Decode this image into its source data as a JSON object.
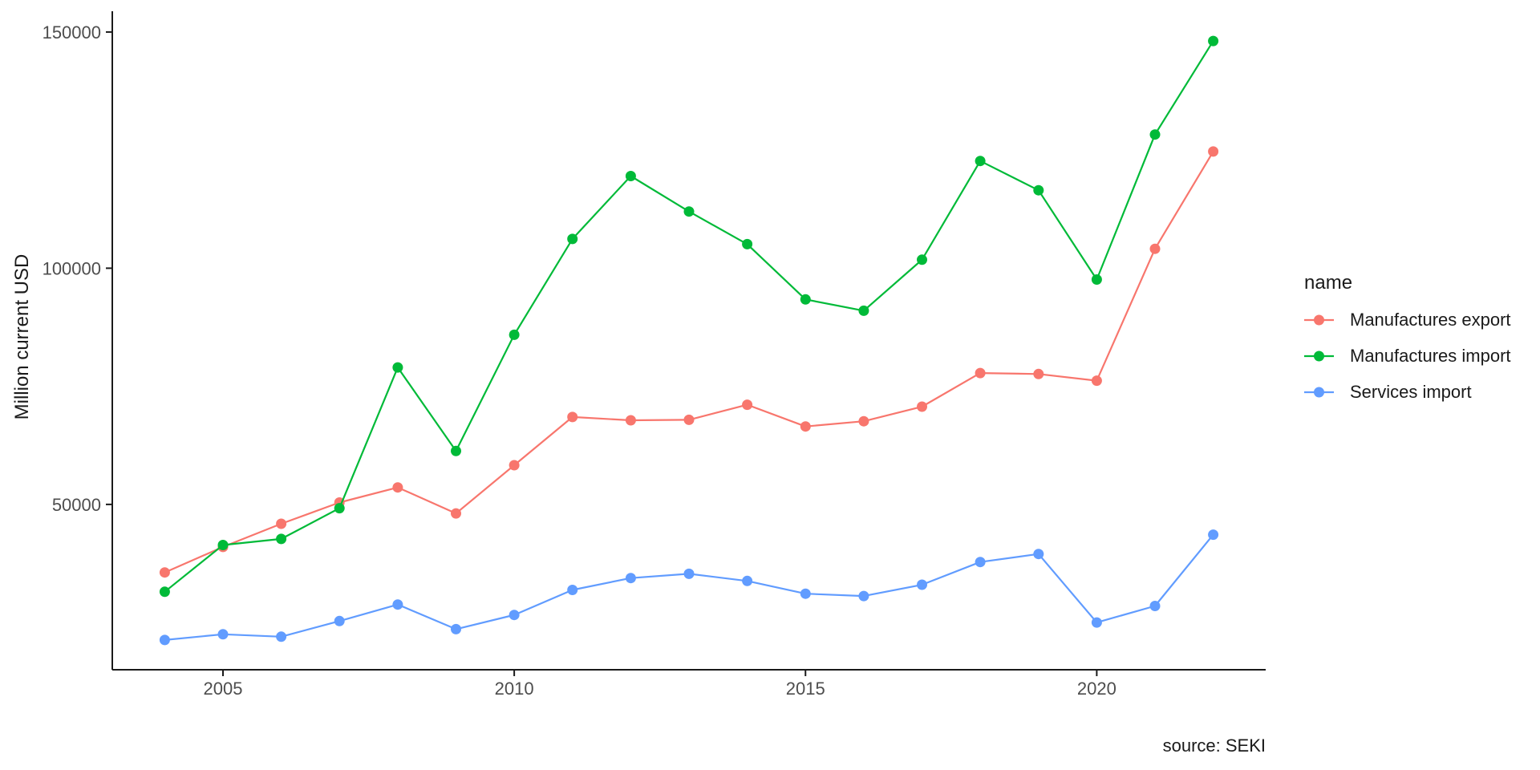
{
  "figure": {
    "y_axis_title": "Million current USD",
    "caption": "source: SEKI",
    "legend": {
      "title": "name",
      "items": [
        {
          "label": "Manufactures export",
          "color": "#F8766D"
        },
        {
          "label": "Manufactures import",
          "color": "#00BA38"
        },
        {
          "label": "Services import",
          "color": "#619CFF"
        }
      ]
    }
  },
  "chart_data": {
    "type": "line",
    "x": [
      2004,
      2005,
      2006,
      2007,
      2008,
      2009,
      2010,
      2011,
      2012,
      2013,
      2014,
      2015,
      2016,
      2017,
      2018,
      2019,
      2020,
      2021,
      2022
    ],
    "series": [
      {
        "name": "Manufactures export",
        "color": "#F8766D",
        "values": [
          35600,
          41000,
          45900,
          50400,
          53600,
          48100,
          58300,
          68500,
          67800,
          67900,
          71100,
          66500,
          67600,
          70700,
          77800,
          77600,
          76200,
          104100,
          124700
        ]
      },
      {
        "name": "Manufactures import",
        "color": "#00BA38",
        "values": [
          31500,
          41400,
          42700,
          49200,
          79000,
          61300,
          85900,
          106200,
          119500,
          112000,
          105100,
          93400,
          91000,
          101800,
          122700,
          116500,
          97600,
          128300,
          148100
        ]
      },
      {
        "name": "Services import",
        "color": "#619CFF",
        "values": [
          21300,
          22500,
          22000,
          25300,
          28800,
          23600,
          26600,
          31900,
          34400,
          35300,
          33800,
          31100,
          30600,
          33000,
          37800,
          39500,
          25000,
          28500,
          43600
        ]
      }
    ],
    "title": "",
    "xlabel": "",
    "ylabel": "Million current USD",
    "caption": "source: SEKI",
    "legend_title": "name",
    "legend_position": "right",
    "grid": false,
    "x_ticks": [
      2005,
      2010,
      2015,
      2020
    ],
    "y_ticks": [
      50000,
      100000,
      150000
    ],
    "xlim": [
      2003.1,
      2022.9
    ],
    "ylim": [
      15000,
      154400
    ],
    "axis_text_color": "#4d4d4d",
    "axis_line_color": "#1a1a1a"
  }
}
